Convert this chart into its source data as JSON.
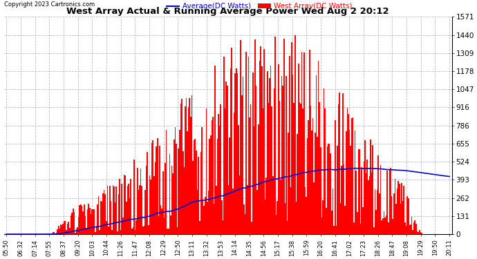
{
  "title": "West Array Actual & Running Average Power Wed Aug 2 20:12",
  "copyright": "Copyright 2023 Cartronics.com",
  "legend_average": "Average(DC Watts)",
  "legend_west": "West Array(DC Watts)",
  "yticks": [
    0.0,
    130.9,
    261.8,
    392.7,
    523.6,
    654.6,
    785.5,
    916.4,
    1047.3,
    1178.2,
    1309.1,
    1440.0,
    1570.9
  ],
  "ylim": [
    0.0,
    1570.9
  ],
  "bar_color": "#ff0000",
  "line_color": "#0000cc",
  "background_color": "#ffffff",
  "plot_bg_color": "#ffffff",
  "grid_color": "#aaaaaa",
  "title_color": "#000000",
  "copyright_color": "#000000",
  "legend_avg_color": "#0000cc",
  "legend_west_color": "#ff0000",
  "n_points": 400,
  "xtick_labels": [
    "05:50",
    "06:32",
    "07:14",
    "07:55",
    "08:37",
    "09:20",
    "10:03",
    "10:44",
    "11:26",
    "11:47",
    "12:08",
    "12:29",
    "12:50",
    "13:11",
    "13:32",
    "13:53",
    "14:14",
    "14:35",
    "14:56",
    "15:17",
    "15:38",
    "15:59",
    "16:20",
    "16:41",
    "17:02",
    "17:23",
    "18:26",
    "18:47",
    "19:08",
    "19:29",
    "19:50",
    "20:11"
  ]
}
